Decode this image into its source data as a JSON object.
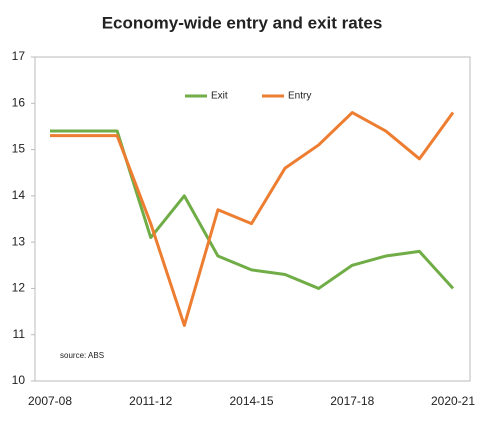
{
  "chart_data": {
    "type": "line",
    "title": "Economy-wide entry and exit rates",
    "annotation": "source:  ABS",
    "categories": [
      "2007-08",
      null,
      null,
      "2011-12",
      null,
      null,
      "2014-15",
      null,
      null,
      "2017-18",
      null,
      null,
      "2020-21"
    ],
    "series": [
      {
        "name": "Exit",
        "color": "#70ad47",
        "values": [
          15.4,
          15.4,
          15.4,
          13.1,
          14.0,
          12.7,
          12.4,
          12.3,
          12.0,
          12.5,
          12.7,
          12.8,
          12.0
        ]
      },
      {
        "name": "Entry",
        "color": "#ed7d31",
        "values": [
          15.3,
          15.3,
          15.3,
          13.4,
          11.2,
          13.7,
          13.4,
          14.6,
          15.1,
          15.8,
          15.4,
          14.8,
          15.8
        ]
      }
    ],
    "ylim": [
      10,
      17
    ],
    "yticks": [
      10,
      11,
      12,
      13,
      14,
      15,
      16,
      17
    ],
    "grid": false,
    "legend": "top"
  }
}
